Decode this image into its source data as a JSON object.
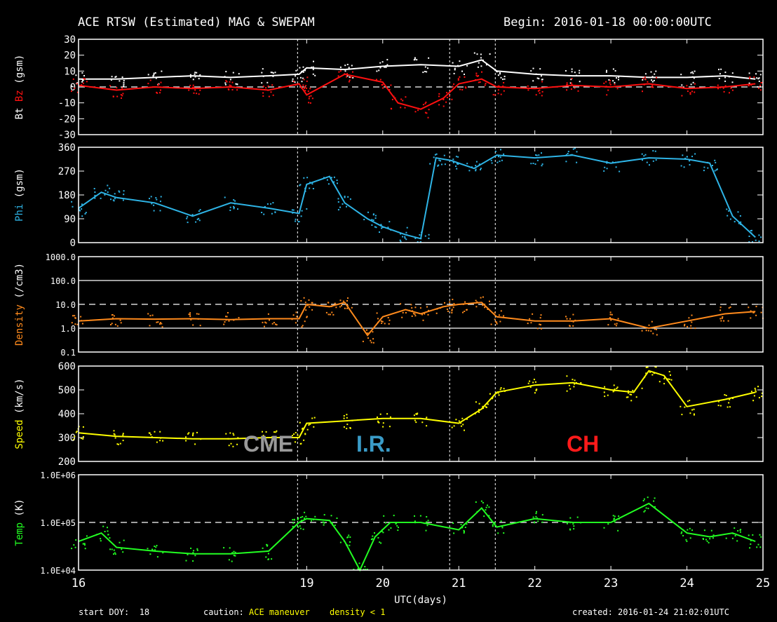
{
  "header": {
    "title": "ACE RTSW (Estimated) MAG & SWEPAM",
    "begin": "Begin: 2016-01-18 00:00:00UTC"
  },
  "footer": {
    "start_doy": "start DOY:  18",
    "caution_label": "caution:",
    "caution_maneuver": "ACE maneuver",
    "caution_density": "density < 1",
    "created": "created: 2016-01-24 21:02:01UTC"
  },
  "colors": {
    "bt": "#ffffff",
    "bz": "#ff1010",
    "phi": "#2eb4e6",
    "density": "#ff8a1c",
    "speed": "#ffff00",
    "temp": "#22ff22",
    "frame": "#ffffff",
    "cme": "#9a9a9a",
    "ir": "#3a9cc8",
    "ch": "#ff1a1a"
  },
  "regions": {
    "cme": "CME",
    "ir": "I.R.",
    "ch": "CH"
  },
  "chart_data": {
    "type": "scatter",
    "x_axis": {
      "label": "UTC(days)",
      "range": [
        16,
        25
      ],
      "ticks": [
        "16",
        "19",
        "20",
        "21",
        "22",
        "23",
        "24",
        "25"
      ]
    },
    "event_lines_x": [
      18.88,
      20.88,
      21.48
    ],
    "panels": [
      {
        "id": "mag",
        "ylabel_parts": [
          "Bt",
          "Bz",
          "(gsm)"
        ],
        "ylim": [
          -30,
          30
        ],
        "yticks": [
          "30",
          "20",
          "10",
          "0",
          "-10",
          "-20",
          "-30"
        ],
        "dashed_at": [
          0
        ],
        "series": [
          {
            "name": "Bt",
            "x": [
              16.0,
              16.5,
              17.0,
              17.5,
              18.0,
              18.5,
              18.9,
              19.0,
              19.5,
              20.0,
              20.5,
              21.0,
              21.3,
              21.5,
              22.0,
              22.5,
              23.0,
              23.5,
              24.0,
              24.5,
              24.9
            ],
            "y": [
              5,
              5,
              6,
              7,
              6,
              7,
              8,
              12,
              11,
              13,
              14,
              13,
              17,
              10,
              8,
              7,
              7,
              6,
              6,
              7,
              5
            ]
          },
          {
            "name": "Bz",
            "x": [
              16.0,
              16.5,
              17.0,
              17.5,
              18.0,
              18.5,
              18.9,
              19.0,
              19.5,
              20.0,
              20.2,
              20.5,
              20.8,
              21.0,
              21.3,
              21.5,
              22.0,
              22.5,
              23.0,
              23.5,
              24.0,
              24.5,
              24.9
            ],
            "y": [
              1,
              -2,
              0,
              -1,
              0,
              -2,
              2,
              -5,
              8,
              3,
              -10,
              -14,
              -7,
              2,
              5,
              0,
              -1,
              1,
              0,
              2,
              -1,
              0,
              2
            ]
          }
        ]
      },
      {
        "id": "phi",
        "ylabel_parts": [
          "Phi",
          "(gsm)"
        ],
        "ylim": [
          0,
          360
        ],
        "yticks": [
          "360",
          "270",
          "180",
          "90",
          "0"
        ],
        "series": [
          {
            "name": "Phi",
            "x": [
              16.0,
              16.3,
              16.5,
              17.0,
              17.5,
              18.0,
              18.5,
              18.9,
              19.0,
              19.3,
              19.5,
              19.8,
              20.0,
              20.3,
              20.5,
              20.7,
              20.9,
              21.2,
              21.5,
              22.0,
              22.5,
              23.0,
              23.5,
              24.0,
              24.3,
              24.6,
              24.9
            ],
            "y": [
              130,
              190,
              170,
              150,
              100,
              150,
              130,
              110,
              220,
              250,
              150,
              90,
              60,
              30,
              15,
              320,
              310,
              280,
              330,
              320,
              330,
              300,
              320,
              315,
              300,
              100,
              20
            ]
          }
        ]
      },
      {
        "id": "density",
        "ylabel_parts": [
          "Density",
          "(/cm3)"
        ],
        "ylim": [
          0.1,
          1000
        ],
        "log": true,
        "yticks": [
          "1000.0",
          "100.0",
          "10.0",
          "1.0",
          "0.1"
        ],
        "dashed_at": [
          10
        ],
        "solid_at": [
          100,
          1
        ],
        "series": [
          {
            "name": "Density",
            "x": [
              16.0,
              16.5,
              17.0,
              17.5,
              18.0,
              18.5,
              18.9,
              19.0,
              19.3,
              19.5,
              19.8,
              20.0,
              20.3,
              20.5,
              20.8,
              21.0,
              21.3,
              21.5,
              22.0,
              22.5,
              23.0,
              23.5,
              24.0,
              24.5,
              24.9
            ],
            "y": [
              2,
              2.5,
              2.4,
              2.5,
              2.3,
              2.5,
              2.5,
              10,
              8,
              12,
              0.5,
              3,
              6,
              4,
              8,
              10,
              12,
              3,
              2,
              2,
              2.5,
              1,
              2,
              4,
              5
            ]
          }
        ]
      },
      {
        "id": "speed",
        "ylabel_parts": [
          "Speed",
          "(km/s)"
        ],
        "ylim": [
          200,
          600
        ],
        "yticks": [
          "600",
          "500",
          "400",
          "300",
          "200"
        ],
        "series": [
          {
            "name": "Speed",
            "x": [
              16.0,
              16.5,
              17.0,
              17.5,
              18.0,
              18.5,
              18.9,
              19.0,
              19.5,
              20.0,
              20.5,
              21.0,
              21.3,
              21.5,
              22.0,
              22.5,
              23.0,
              23.3,
              23.5,
              23.7,
              24.0,
              24.5,
              24.9
            ],
            "y": [
              320,
              305,
              300,
              295,
              295,
              300,
              300,
              360,
              370,
              380,
              380,
              360,
              420,
              490,
              520,
              530,
              500,
              490,
              580,
              560,
              430,
              460,
              490
            ]
          }
        ]
      },
      {
        "id": "temp",
        "ylabel_parts": [
          "Temp",
          "(K)"
        ],
        "ylim": [
          10000,
          1000000
        ],
        "log": true,
        "yticks": [
          "1.0E+06",
          "1.0E+05",
          "1.0E+04"
        ],
        "dashed_at": [
          100000
        ],
        "series": [
          {
            "name": "Temp",
            "x": [
              16.0,
              16.3,
              16.5,
              17.0,
              17.5,
              18.0,
              18.5,
              18.9,
              19.0,
              19.3,
              19.5,
              19.7,
              19.9,
              20.1,
              20.5,
              21.0,
              21.3,
              21.5,
              22.0,
              22.5,
              23.0,
              23.5,
              24.0,
              24.3,
              24.6,
              24.9
            ],
            "y": [
              40000,
              60000,
              30000,
              25000,
              22000,
              22000,
              25000,
              100000,
              120000,
              110000,
              40000,
              10000,
              50000,
              100000,
              100000,
              70000,
              200000,
              80000,
              120000,
              100000,
              100000,
              250000,
              60000,
              50000,
              60000,
              40000
            ]
          }
        ]
      }
    ]
  }
}
